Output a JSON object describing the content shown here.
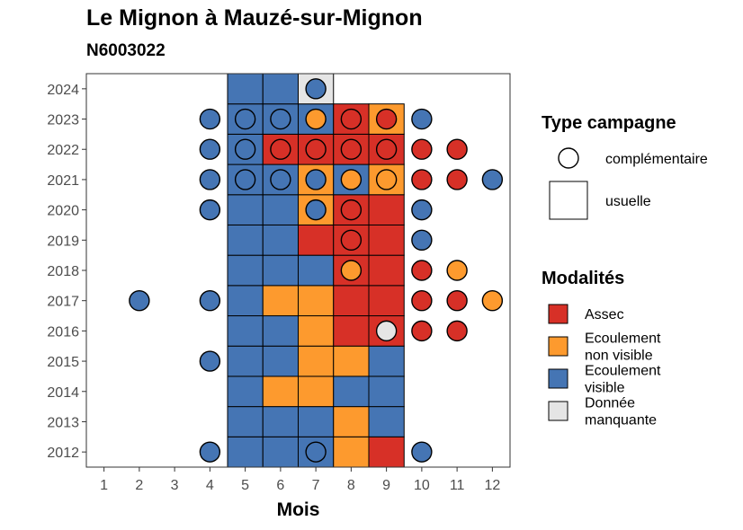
{
  "chart_data": {
    "type": "heatmap",
    "title": "Le Mignon à Mauzé-sur-Mignon",
    "subtitle": "N6003022",
    "xlabel": "Mois",
    "ylabel": "",
    "x_ticks": [
      "1",
      "2",
      "3",
      "4",
      "5",
      "6",
      "7",
      "8",
      "9",
      "10",
      "11",
      "12"
    ],
    "y_ticks": [
      "2012",
      "2013",
      "2014",
      "2015",
      "2016",
      "2017",
      "2018",
      "2019",
      "2020",
      "2021",
      "2022",
      "2023",
      "2024"
    ],
    "xlim": [
      0.5,
      12.5
    ],
    "ylim": [
      2011.5,
      2024.5
    ],
    "legend_campaign": {
      "title": "Type campagne",
      "items": [
        {
          "key": "complementaire",
          "label": "complémentaire",
          "shape": "circle"
        },
        {
          "key": "usuelle",
          "label": "usuelle",
          "shape": "square"
        }
      ]
    },
    "legend_modalites": {
      "title": "Modalités",
      "items": [
        {
          "key": "A",
          "lines": [
            "Assec"
          ],
          "color": "#d73027"
        },
        {
          "key": "N",
          "lines": [
            "Ecoulement",
            "non visible"
          ],
          "color": "#fd9a2e"
        },
        {
          "key": "V",
          "lines": [
            "Ecoulement",
            "visible"
          ],
          "color": "#4575b4"
        },
        {
          "key": "M",
          "lines": [
            "Donnée",
            "manquante"
          ],
          "color": "#e5e5e5"
        }
      ]
    },
    "usuelle": [
      {
        "year": 2012,
        "months": [
          5,
          6,
          7,
          8,
          9
        ],
        "values": [
          "V",
          "V",
          "V",
          "N",
          "A"
        ]
      },
      {
        "year": 2013,
        "months": [
          5,
          6,
          7,
          8,
          9
        ],
        "values": [
          "V",
          "V",
          "V",
          "N",
          "V"
        ]
      },
      {
        "year": 2014,
        "months": [
          5,
          6,
          7,
          8,
          9
        ],
        "values": [
          "V",
          "N",
          "N",
          "V",
          "V"
        ]
      },
      {
        "year": 2015,
        "months": [
          5,
          6,
          7,
          8,
          9
        ],
        "values": [
          "V",
          "V",
          "N",
          "N",
          "V"
        ]
      },
      {
        "year": 2016,
        "months": [
          5,
          6,
          7,
          8,
          9
        ],
        "values": [
          "V",
          "V",
          "N",
          "A",
          "A"
        ]
      },
      {
        "year": 2017,
        "months": [
          5,
          6,
          7,
          8,
          9
        ],
        "values": [
          "V",
          "N",
          "N",
          "A",
          "A"
        ]
      },
      {
        "year": 2018,
        "months": [
          5,
          6,
          7,
          8,
          9
        ],
        "values": [
          "V",
          "V",
          "V",
          "A",
          "A"
        ]
      },
      {
        "year": 2019,
        "months": [
          5,
          6,
          7,
          8,
          9
        ],
        "values": [
          "V",
          "V",
          "A",
          "A",
          "A"
        ]
      },
      {
        "year": 2020,
        "months": [
          5,
          6,
          7,
          8,
          9
        ],
        "values": [
          "V",
          "V",
          "N",
          "A",
          "A"
        ]
      },
      {
        "year": 2021,
        "months": [
          5,
          6,
          7,
          8,
          9
        ],
        "values": [
          "V",
          "V",
          "N",
          "V",
          "N"
        ]
      },
      {
        "year": 2022,
        "months": [
          5,
          6,
          7,
          8,
          9
        ],
        "values": [
          "V",
          "A",
          "A",
          "A",
          "A"
        ]
      },
      {
        "year": 2023,
        "months": [
          5,
          6,
          7,
          8,
          9
        ],
        "values": [
          "V",
          "V",
          "V",
          "A",
          "N"
        ]
      },
      {
        "year": 2024,
        "months": [
          5,
          6,
          7
        ],
        "values": [
          "V",
          "V",
          "M"
        ]
      }
    ],
    "complementaire": [
      {
        "year": 2012,
        "months": [
          4,
          7,
          10
        ],
        "values": [
          "V",
          "V",
          "V"
        ]
      },
      {
        "year": 2015,
        "months": [
          4
        ],
        "values": [
          "V"
        ]
      },
      {
        "year": 2016,
        "months": [
          9,
          10,
          11
        ],
        "values": [
          "M",
          "A",
          "A"
        ]
      },
      {
        "year": 2017,
        "months": [
          2,
          4,
          10,
          11,
          12
        ],
        "values": [
          "V",
          "V",
          "A",
          "A",
          "N"
        ]
      },
      {
        "year": 2018,
        "months": [
          8,
          10,
          11
        ],
        "values": [
          "N",
          "A",
          "N"
        ]
      },
      {
        "year": 2019,
        "months": [
          8,
          10
        ],
        "values": [
          "A",
          "V"
        ]
      },
      {
        "year": 2020,
        "months": [
          4,
          7,
          8,
          10
        ],
        "values": [
          "V",
          "V",
          "A",
          "V"
        ]
      },
      {
        "year": 2021,
        "months": [
          4,
          5,
          6,
          7,
          8,
          9,
          10,
          11,
          12
        ],
        "values": [
          "V",
          "V",
          "V",
          "V",
          "N",
          "N",
          "A",
          "A",
          "V"
        ]
      },
      {
        "year": 2022,
        "months": [
          4,
          5,
          6,
          7,
          8,
          9,
          10,
          11
        ],
        "values": [
          "V",
          "V",
          "A",
          "A",
          "A",
          "A",
          "A",
          "A"
        ]
      },
      {
        "year": 2023,
        "months": [
          4,
          5,
          6,
          7,
          8,
          9,
          10
        ],
        "values": [
          "V",
          "V",
          "V",
          "N",
          "A",
          "A",
          "V"
        ]
      },
      {
        "year": 2024,
        "months": [
          7
        ],
        "values": [
          "V"
        ]
      }
    ]
  }
}
